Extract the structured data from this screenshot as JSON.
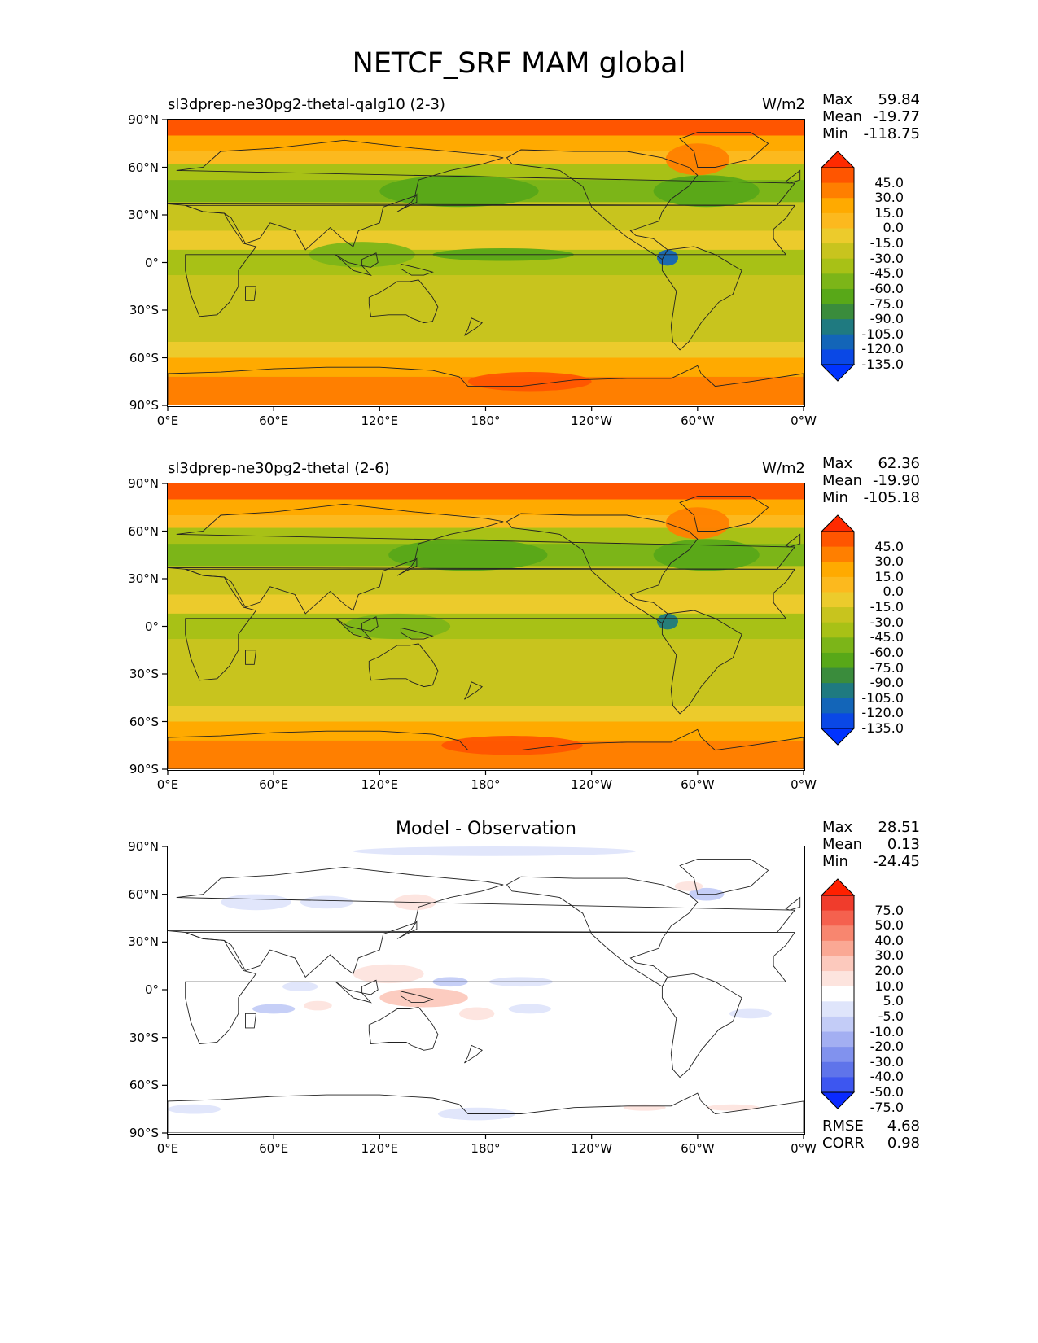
{
  "figure": {
    "title": "NETCF_SRF MAM global"
  },
  "chart_data": [
    {
      "type": "heatmap",
      "name": "test",
      "title": "sl3dprep-ne30pg2-thetal-qalg10 (2-3)",
      "units": "W/m2",
      "stats": {
        "max_label": "Max",
        "max": "59.84",
        "mean_label": "Mean",
        "mean": "-19.77",
        "min_label": "Min",
        "min": "-118.75"
      },
      "x_ticks": [
        "0°E",
        "60°E",
        "120°E",
        "180°",
        "120°W",
        "60°W",
        "0°W"
      ],
      "y_ticks": [
        "90°N",
        "60°N",
        "30°N",
        "0°",
        "30°S",
        "60°S",
        "90°S"
      ],
      "xlim": [
        0,
        360
      ],
      "ylim": [
        -90,
        90
      ],
      "colorbar_levels": [
        "45.0",
        "30.0",
        "15.0",
        "0.0",
        "-15.0",
        "-30.0",
        "-45.0",
        "-60.0",
        "-75.0",
        "-90.0",
        "-105.0",
        "-120.0",
        "-135.0"
      ],
      "colorbar_colors": [
        "#ff2a00",
        "#ff5500",
        "#ff7f00",
        "#ffaa00",
        "#fcb91e",
        "#eccb2c",
        "#c8c41e",
        "#a8c116",
        "#7cb518",
        "#58a818",
        "#3a8c3c",
        "#1f7a80",
        "#1365b8",
        "#0a48e6",
        "#0033ff"
      ],
      "bands": [
        {
          "lat0": 90,
          "lat1": 80,
          "value": 45
        },
        {
          "lat0": 80,
          "lat1": 70,
          "value": 25
        },
        {
          "lat0": 70,
          "lat1": 62,
          "value": 5
        },
        {
          "lat0": 62,
          "lat1": 52,
          "value": -35
        },
        {
          "lat0": 52,
          "lat1": 38,
          "value": -55
        },
        {
          "lat0": 38,
          "lat1": 20,
          "value": -22
        },
        {
          "lat0": 20,
          "lat1": 8,
          "value": -10
        },
        {
          "lat0": 8,
          "lat1": -8,
          "value": -35
        },
        {
          "lat0": -8,
          "lat1": -30,
          "value": -25
        },
        {
          "lat0": -30,
          "lat1": -50,
          "value": -28
        },
        {
          "lat0": -50,
          "lat1": -60,
          "value": -5
        },
        {
          "lat0": -60,
          "lat1": -72,
          "value": 20
        },
        {
          "lat0": -72,
          "lat1": -90,
          "value": 32
        }
      ],
      "features": [
        {
          "lon": 165,
          "lat": 45,
          "rlon": 45,
          "rlat": 10,
          "value": -70
        },
        {
          "lon": 305,
          "lat": 45,
          "rlon": 30,
          "rlat": 10,
          "value": -65
        },
        {
          "lon": 190,
          "lat": 5,
          "rlon": 40,
          "rlat": 4,
          "value": -65
        },
        {
          "lon": 283,
          "lat": 3,
          "rlon": 6,
          "rlat": 5,
          "value": -110
        },
        {
          "lon": 300,
          "lat": 65,
          "rlon": 18,
          "rlat": 10,
          "value": 35
        },
        {
          "lon": 205,
          "lat": -75,
          "rlon": 35,
          "rlat": 6,
          "value": 50
        },
        {
          "lon": 110,
          "lat": 5,
          "rlon": 30,
          "rlat": 8,
          "value": -60
        }
      ]
    },
    {
      "type": "heatmap",
      "name": "reference",
      "title": "sl3dprep-ne30pg2-thetal (2-6)",
      "units": "W/m2",
      "stats": {
        "max_label": "Max",
        "max": "62.36",
        "mean_label": "Mean",
        "mean": "-19.90",
        "min_label": "Min",
        "min": "-105.18"
      },
      "x_ticks": [
        "0°E",
        "60°E",
        "120°E",
        "180°",
        "120°W",
        "60°W",
        "0°W"
      ],
      "y_ticks": [
        "90°N",
        "60°N",
        "30°N",
        "0°",
        "30°S",
        "60°S",
        "90°S"
      ],
      "xlim": [
        0,
        360
      ],
      "ylim": [
        -90,
        90
      ],
      "colorbar_levels": [
        "45.0",
        "30.0",
        "15.0",
        "0.0",
        "-15.0",
        "-30.0",
        "-45.0",
        "-60.0",
        "-75.0",
        "-90.0",
        "-105.0",
        "-120.0",
        "-135.0"
      ],
      "colorbar_colors": [
        "#ff2a00",
        "#ff5500",
        "#ff7f00",
        "#ffaa00",
        "#fcb91e",
        "#eccb2c",
        "#c8c41e",
        "#a8c116",
        "#7cb518",
        "#58a818",
        "#3a8c3c",
        "#1f7a80",
        "#1365b8",
        "#0a48e6",
        "#0033ff"
      ],
      "bands": [
        {
          "lat0": 90,
          "lat1": 80,
          "value": 48
        },
        {
          "lat0": 80,
          "lat1": 70,
          "value": 25
        },
        {
          "lat0": 70,
          "lat1": 62,
          "value": 5
        },
        {
          "lat0": 62,
          "lat1": 52,
          "value": -35
        },
        {
          "lat0": 52,
          "lat1": 38,
          "value": -55
        },
        {
          "lat0": 38,
          "lat1": 20,
          "value": -22
        },
        {
          "lat0": 20,
          "lat1": 8,
          "value": -15
        },
        {
          "lat0": 8,
          "lat1": -8,
          "value": -38
        },
        {
          "lat0": -8,
          "lat1": -30,
          "value": -25
        },
        {
          "lat0": -30,
          "lat1": -50,
          "value": -28
        },
        {
          "lat0": -50,
          "lat1": -60,
          "value": -5
        },
        {
          "lat0": -60,
          "lat1": -72,
          "value": 22
        },
        {
          "lat0": -72,
          "lat1": -90,
          "value": 32
        }
      ],
      "features": [
        {
          "lon": 170,
          "lat": 45,
          "rlon": 45,
          "rlat": 10,
          "value": -70
        },
        {
          "lon": 305,
          "lat": 45,
          "rlon": 30,
          "rlat": 10,
          "value": -65
        },
        {
          "lon": 283,
          "lat": 3,
          "rlon": 6,
          "rlat": 5,
          "value": -95
        },
        {
          "lon": 300,
          "lat": 65,
          "rlon": 18,
          "rlat": 10,
          "value": 35
        },
        {
          "lon": 195,
          "lat": -75,
          "rlon": 40,
          "rlat": 6,
          "value": 50
        },
        {
          "lon": 130,
          "lat": 0,
          "rlon": 30,
          "rlat": 8,
          "value": -60
        }
      ]
    },
    {
      "type": "heatmap",
      "name": "difference",
      "title": "Model - Observation",
      "units": "",
      "stats": {
        "max_label": "Max",
        "max": "28.51",
        "mean_label": "Mean",
        "mean": "0.13",
        "min_label": "Min",
        "min": "-24.45"
      },
      "extra_stats": {
        "rmse_label": "RMSE",
        "rmse": "4.68",
        "corr_label": "CORR",
        "corr": "0.98"
      },
      "x_ticks": [
        "0°E",
        "60°E",
        "120°E",
        "180°",
        "120°W",
        "60°W",
        "0°W"
      ],
      "y_ticks": [
        "90°N",
        "60°N",
        "30°N",
        "0°",
        "30°S",
        "60°S",
        "90°S"
      ],
      "xlim": [
        0,
        360
      ],
      "ylim": [
        -90,
        90
      ],
      "colorbar_levels": [
        "75.0",
        "50.0",
        "40.0",
        "30.0",
        "20.0",
        "10.0",
        "5.0",
        "-5.0",
        "-10.0",
        "-20.0",
        "-30.0",
        "-40.0",
        "-50.0",
        "-75.0"
      ],
      "colorbar_colors": [
        "#ff2000",
        "#f03c2c",
        "#f5614e",
        "#f8866f",
        "#faa894",
        "#fcc9bd",
        "#fde4de",
        "#ffffff",
        "#dfe5fb",
        "#c3ccf7",
        "#a3aff2",
        "#8192ee",
        "#5f74ea",
        "#3d56f0",
        "#0a2aff"
      ],
      "bands": [],
      "features": [
        {
          "lon": 185,
          "lat": 87,
          "rlon": 80,
          "rlat": 3,
          "value": -7
        },
        {
          "lon": 50,
          "lat": 55,
          "rlon": 20,
          "rlat": 5,
          "value": -7
        },
        {
          "lon": 90,
          "lat": 55,
          "rlon": 15,
          "rlat": 4,
          "value": -7
        },
        {
          "lon": 140,
          "lat": 55,
          "rlon": 12,
          "rlat": 5,
          "value": 7
        },
        {
          "lon": 125,
          "lat": 10,
          "rlon": 20,
          "rlat": 6,
          "value": 7
        },
        {
          "lon": 145,
          "lat": -5,
          "rlon": 25,
          "rlat": 6,
          "value": 12
        },
        {
          "lon": 160,
          "lat": 5,
          "rlon": 10,
          "rlat": 3,
          "value": -12
        },
        {
          "lon": 75,
          "lat": 2,
          "rlon": 10,
          "rlat": 3,
          "value": -7
        },
        {
          "lon": 60,
          "lat": -12,
          "rlon": 12,
          "rlat": 3,
          "value": -12
        },
        {
          "lon": 85,
          "lat": -10,
          "rlon": 8,
          "rlat": 3,
          "value": 7
        },
        {
          "lon": 175,
          "lat": -15,
          "rlon": 10,
          "rlat": 4,
          "value": 7
        },
        {
          "lon": 205,
          "lat": -12,
          "rlon": 12,
          "rlat": 3,
          "value": -7
        },
        {
          "lon": 200,
          "lat": 5,
          "rlon": 18,
          "rlat": 3,
          "value": -7
        },
        {
          "lon": 330,
          "lat": -15,
          "rlon": 12,
          "rlat": 3,
          "value": -7
        },
        {
          "lon": 305,
          "lat": 60,
          "rlon": 10,
          "rlat": 4,
          "value": -12
        },
        {
          "lon": 295,
          "lat": 65,
          "rlon": 8,
          "rlat": 3,
          "value": 7
        },
        {
          "lon": 175,
          "lat": -78,
          "rlon": 22,
          "rlat": 4,
          "value": -7
        },
        {
          "lon": 270,
          "lat": -74,
          "rlon": 12,
          "rlat": 2,
          "value": 7
        },
        {
          "lon": 15,
          "lat": -75,
          "rlon": 15,
          "rlat": 3,
          "value": -7
        },
        {
          "lon": 320,
          "lat": -74,
          "rlon": 15,
          "rlat": 2,
          "value": 7
        }
      ]
    }
  ]
}
